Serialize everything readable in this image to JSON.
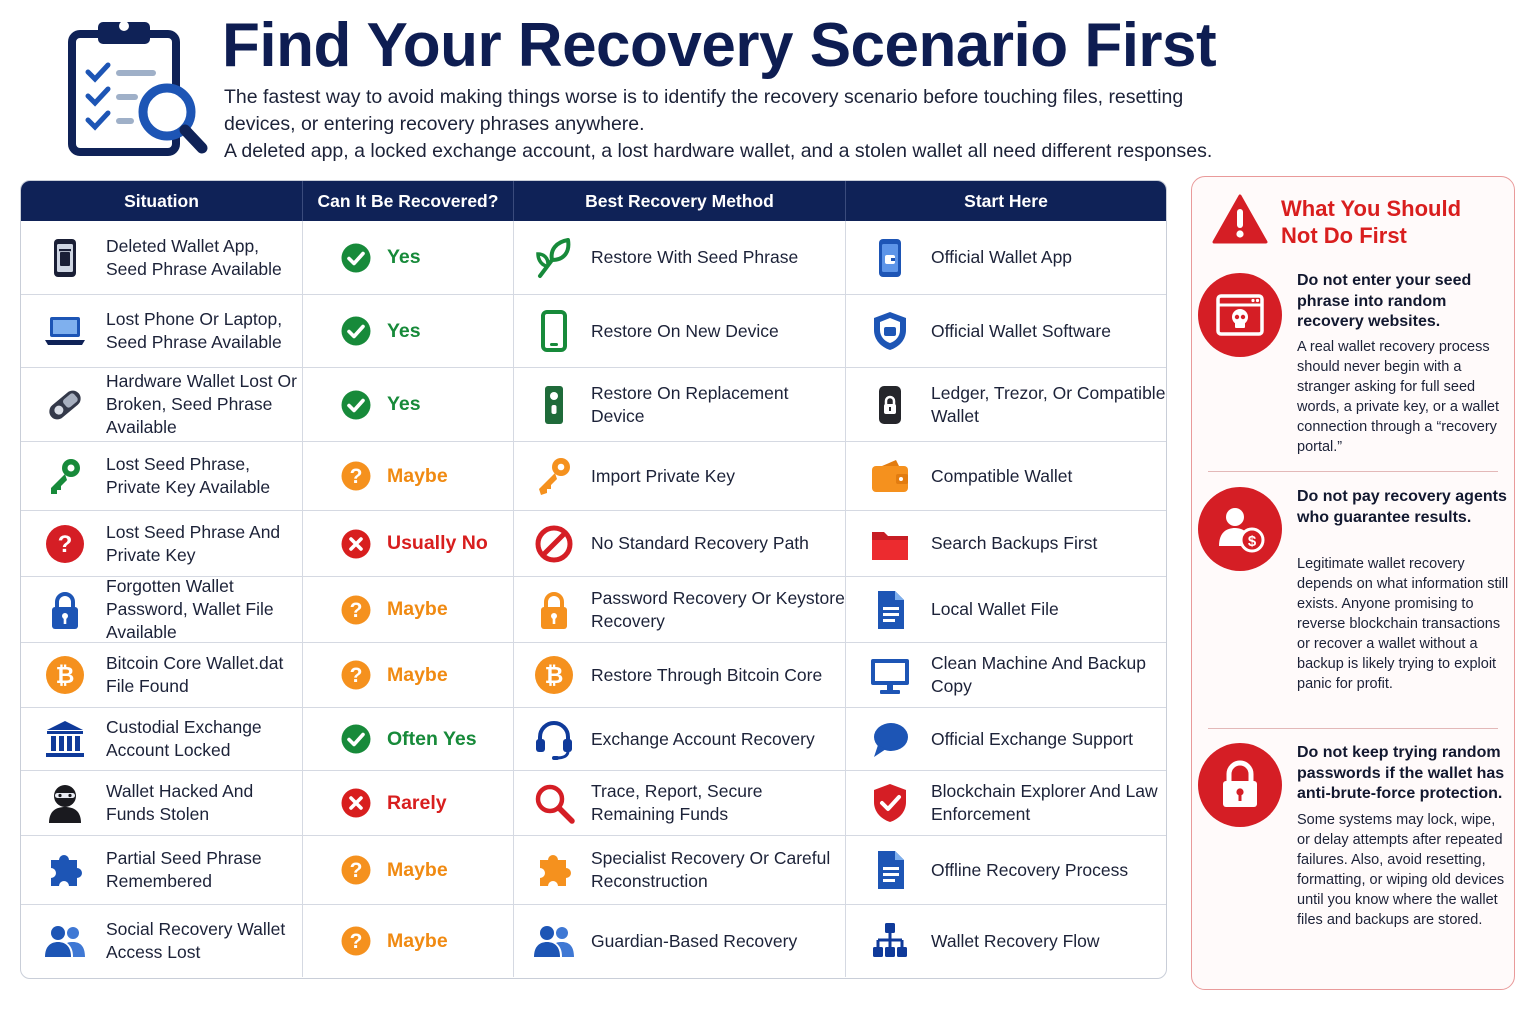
{
  "header": {
    "title": "Find Your Recovery Scenario First",
    "subtitle": "The fastest way to avoid making things worse is to identify the recovery scenario before touching files, resetting devices, or entering recovery phrases anywhere.",
    "subtitle2": "A deleted app, a locked exchange account, a lost hardware wallet, and a stolen wallet all need different responses."
  },
  "table": {
    "headers": [
      "Situation",
      "Can It Be Recovered?",
      "Best Recovery Method",
      "Start Here"
    ],
    "rows": [
      {
        "situation": "Deleted Wallet App, Seed Phrase Available",
        "status": "Yes",
        "status_type": "yes",
        "method": "Restore With Seed Phrase",
        "start": "Official Wallet App",
        "icons": [
          "trash-phone-icon",
          "seed-sprout-icon",
          "wallet-app-icon"
        ]
      },
      {
        "situation": "Lost Phone Or Laptop, Seed Phrase Available",
        "status": "Yes",
        "status_type": "yes",
        "method": "Restore On New Device",
        "start": "Official Wallet Software",
        "icons": [
          "laptop-icon",
          "phone-icon",
          "shield-wallet-icon"
        ]
      },
      {
        "situation": "Hardware Wallet Lost Or Broken, Seed Phrase Available",
        "status": "Yes",
        "status_type": "yes",
        "method": "Restore On Replacement Device",
        "start": "Ledger, Trezor, Or Compatible Wallet",
        "icons": [
          "hardware-wallet-icon",
          "replacement-device-icon",
          "lock-device-icon"
        ]
      },
      {
        "situation": "Lost Seed Phrase, Private Key Available",
        "status": "Maybe",
        "status_type": "maybe",
        "method": "Import Private Key",
        "start": "Compatible Wallet",
        "icons": [
          "green-key-icon",
          "orange-key-icon",
          "wallet-icon"
        ]
      },
      {
        "situation": "Lost Seed Phrase And Private Key",
        "status": "Usually No",
        "status_type": "no",
        "method": "No Standard Recovery Path",
        "start": "Search Backups First",
        "icons": [
          "question-icon",
          "prohibited-icon",
          "folder-icon"
        ]
      },
      {
        "situation": "Forgotten Wallet Password, Wallet File Available",
        "status": "Maybe",
        "status_type": "maybe",
        "method": "Password Recovery Or Keystore Recovery",
        "start": "Local Wallet File",
        "icons": [
          "padlock-icon",
          "orange-padlock-icon",
          "document-icon"
        ]
      },
      {
        "situation": "Bitcoin Core Wallet.dat File Found",
        "status": "Maybe",
        "status_type": "maybe",
        "method": "Restore Through Bitcoin Core",
        "start": "Clean Machine And Backup Copy",
        "icons": [
          "bitcoin-icon",
          "bitcoin-icon",
          "monitor-icon"
        ]
      },
      {
        "situation": "Custodial Exchange Account Locked",
        "status": "Often Yes",
        "status_type": "yes",
        "method": "Exchange Account Recovery",
        "start": "Official Exchange Support",
        "icons": [
          "bank-icon",
          "headset-icon",
          "chat-bubble-icon"
        ]
      },
      {
        "situation": "Wallet Hacked And Funds Stolen",
        "status": "Rarely",
        "status_type": "no",
        "method": "Trace, Report, Secure Remaining Funds",
        "start": "Blockchain Explorer And Law Enforcement",
        "icons": [
          "hacker-icon",
          "magnifier-icon",
          "security-shield-icon"
        ]
      },
      {
        "situation": "Partial Seed Phrase Remembered",
        "status": "Maybe",
        "status_type": "maybe",
        "method": "Specialist Recovery Or Careful Reconstruction",
        "start": "Offline Recovery Process",
        "icons": [
          "puzzle-icon",
          "orange-puzzle-icon",
          "document-icon"
        ]
      },
      {
        "situation": "Social Recovery Wallet Access Lost",
        "status": "Maybe",
        "status_type": "maybe",
        "method": "Guardian-Based Recovery",
        "start": "Wallet Recovery Flow",
        "icons": [
          "users-icon",
          "users-icon",
          "hierarchy-icon"
        ]
      }
    ]
  },
  "panel": {
    "title": "What You Should Not Do First",
    "tips": [
      {
        "heading": "Do not enter your seed phrase into random recovery websites.",
        "body": "A real wallet recovery process should never begin with a stranger asking for full seed words, a private key, or a wallet connection through a “recovery portal.”",
        "icon": "malicious-website-icon"
      },
      {
        "heading": "Do not pay recovery agents who guarantee results.",
        "body": "Legitimate wallet recovery depends on what information still exists. Anyone promising to reverse blockchain transactions or recover a wallet without a backup is likely trying to exploit panic for profit.",
        "icon": "paid-agent-icon"
      },
      {
        "heading": "Do not keep trying random passwords if the wallet has anti-brute-force protection.",
        "body": "Some systems may lock, wipe, or delay attempts after repeated failures. Also, avoid resetting, formatting, or wiping old devices until you know where the wallet files and backups are stored.",
        "icon": "padlock-icon"
      }
    ]
  },
  "colors": {
    "navy": "#0f2257",
    "title_navy": "#0e1d52",
    "yes_green": "#178a3a",
    "maybe_orange": "#f08a12",
    "no_red": "#d81e1e",
    "panel_red": "#d51e25",
    "icon_blue": "#1d55b5",
    "icon_orange": "#f5911e"
  }
}
